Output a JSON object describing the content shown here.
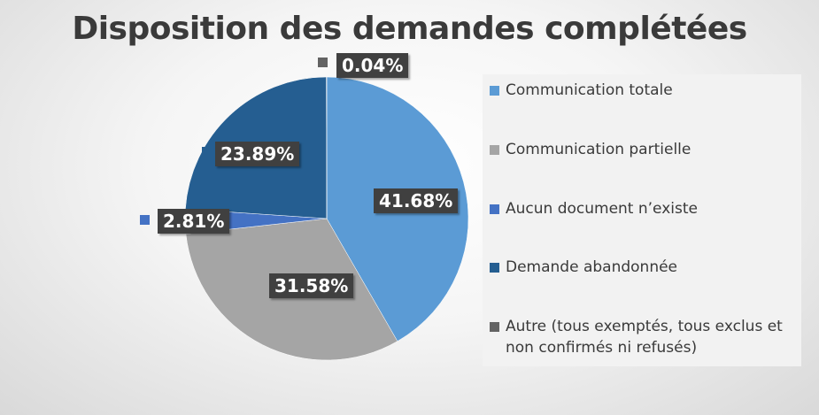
{
  "chart_data": {
    "type": "pie",
    "title": "Disposition des demandes complétées",
    "categories": [
      "Communication totale",
      "Communication partielle",
      "Aucun document n’existe",
      "Demande abandonnée",
      "Autre (tous exemptés, tous exclus et non confirmés ni refusés)"
    ],
    "values": [
      41.68,
      31.58,
      2.81,
      23.89,
      0.04
    ],
    "value_labels": [
      "41.68%",
      "31.58%",
      "2.81%",
      "23.89%",
      "0.04%"
    ],
    "colors": [
      "#5b9bd5",
      "#a5a5a5",
      "#4472c4",
      "#255e91",
      "#636363"
    ],
    "legend_position": "right"
  }
}
